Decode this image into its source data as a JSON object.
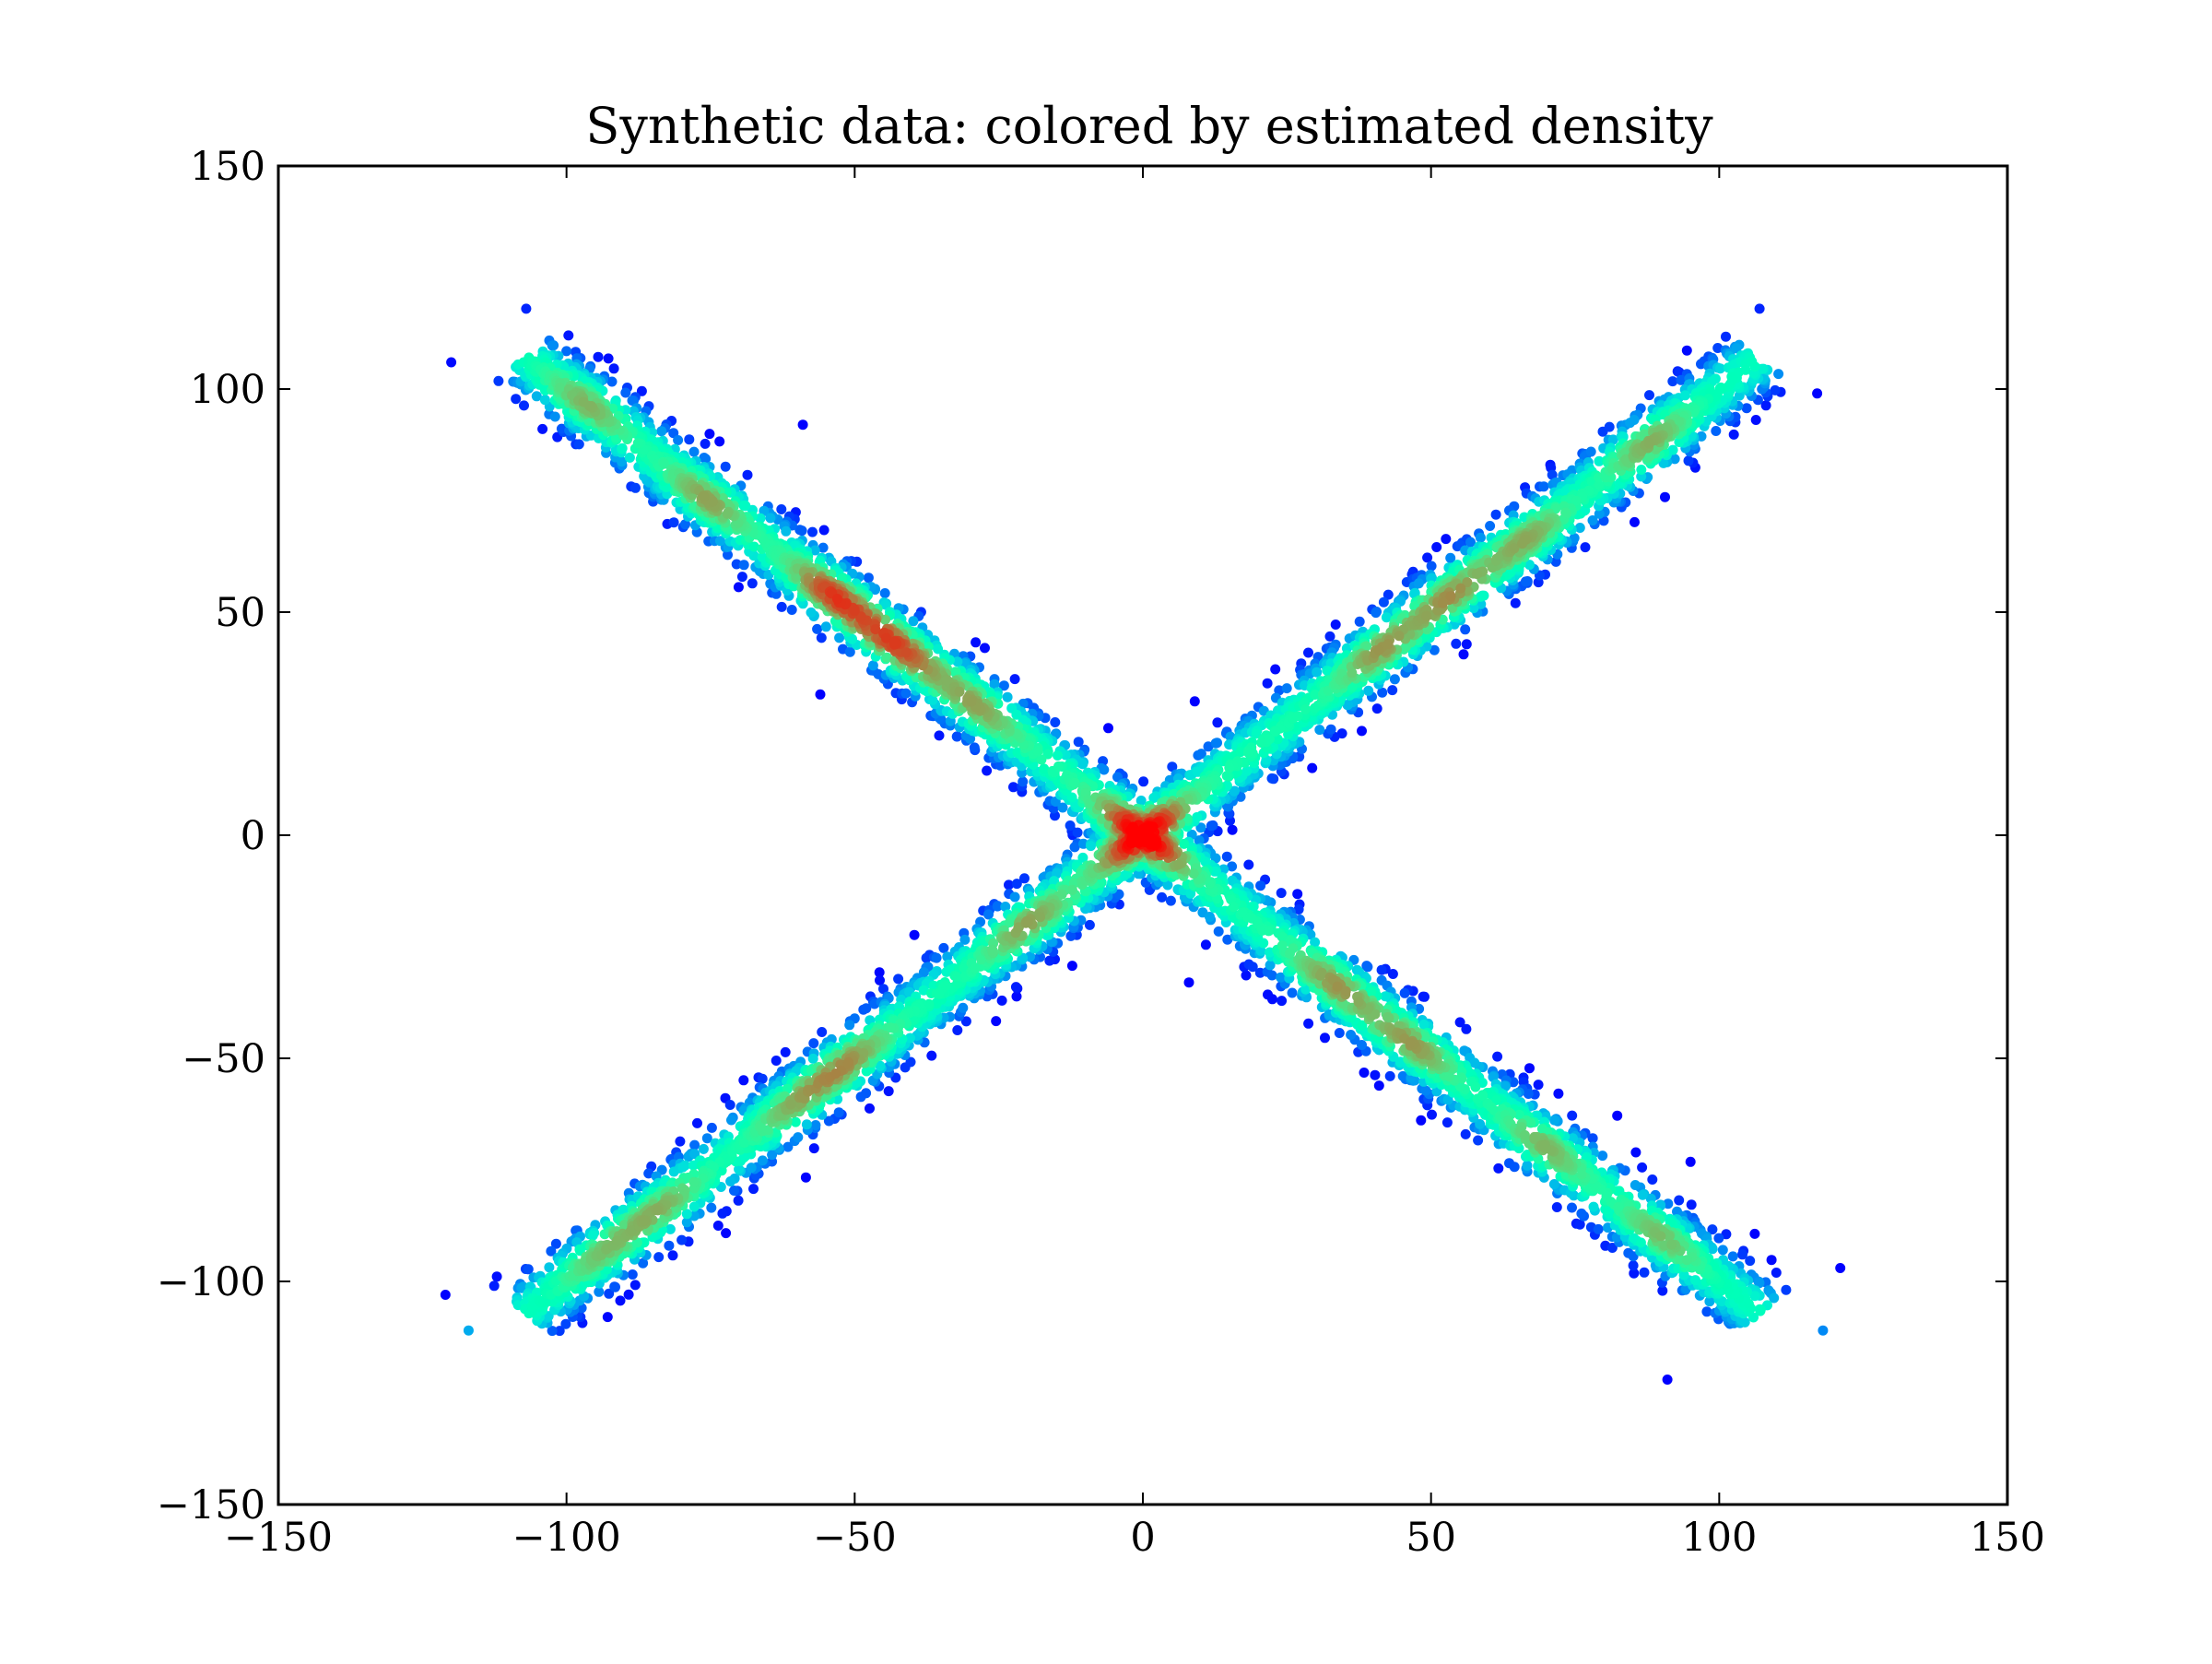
{
  "chart_data": {
    "type": "scatter",
    "title": "Synthetic data: colored by estimated density",
    "xlabel": "",
    "ylabel": "",
    "xlim": [
      -150,
      150
    ],
    "ylim": [
      -150,
      150
    ],
    "xticks": [
      -150,
      -100,
      -50,
      0,
      50,
      100,
      150
    ],
    "yticks": [
      -150,
      -100,
      -50,
      0,
      50,
      100,
      150
    ],
    "xtick_labels": [
      "−150",
      "−100",
      "−50",
      "0",
      "50",
      "100",
      "150"
    ],
    "ytick_labels": [
      "−150",
      "−100",
      "−50",
      "0",
      "50",
      "100",
      "150"
    ],
    "grid": false,
    "legend": "none",
    "colormap": "rainbow",
    "color_encoding": "estimated density (low = purple, high = red)",
    "structure": "two crossing linear bands forming an X: y ≈ x and y ≈ −x, spanning x ≈ −120 to 120",
    "clusters": [
      {
        "x": 0,
        "y": 0,
        "density": 1.0
      },
      {
        "x": -54,
        "y": 54,
        "density": 0.8
      },
      {
        "x": -43,
        "y": 42,
        "density": 0.75
      },
      {
        "x": -77,
        "y": 74,
        "density": 0.6
      },
      {
        "x": -96,
        "y": 97,
        "density": 0.55
      },
      {
        "x": -28,
        "y": 30,
        "density": 0.5
      },
      {
        "x": 52,
        "y": 55,
        "density": 0.6
      },
      {
        "x": 40,
        "y": 42,
        "density": 0.55
      },
      {
        "x": 68,
        "y": 65,
        "density": 0.55
      },
      {
        "x": 88,
        "y": 88,
        "density": 0.55
      },
      {
        "x": -52,
        "y": -50,
        "density": 0.55
      },
      {
        "x": -63,
        "y": -58,
        "density": 0.5
      },
      {
        "x": -84,
        "y": -83,
        "density": 0.5
      },
      {
        "x": -95,
        "y": -93,
        "density": 0.45
      },
      {
        "x": -20,
        "y": -20,
        "density": 0.5
      },
      {
        "x": 33,
        "y": -34,
        "density": 0.55
      },
      {
        "x": 47,
        "y": -47,
        "density": 0.55
      },
      {
        "x": 70,
        "y": -70,
        "density": 0.5
      },
      {
        "x": 90,
        "y": -90,
        "density": 0.5
      }
    ],
    "outliers": [
      {
        "x": -120,
        "y": 106
      },
      {
        "x": -107,
        "y": 118
      },
      {
        "x": -59,
        "y": 92
      },
      {
        "x": 107,
        "y": 118
      },
      {
        "x": 117,
        "y": 99
      },
      {
        "x": 121,
        "y": -97
      },
      {
        "x": 118,
        "y": -111
      },
      {
        "x": 91,
        "y": -122
      },
      {
        "x": -121,
        "y": -103
      },
      {
        "x": -117,
        "y": -111
      },
      {
        "x": -6,
        "y": 24
      },
      {
        "x": 9,
        "y": 30
      },
      {
        "x": -22,
        "y": -34
      },
      {
        "x": 8,
        "y": -33
      }
    ],
    "point_count_approx": 6000
  }
}
